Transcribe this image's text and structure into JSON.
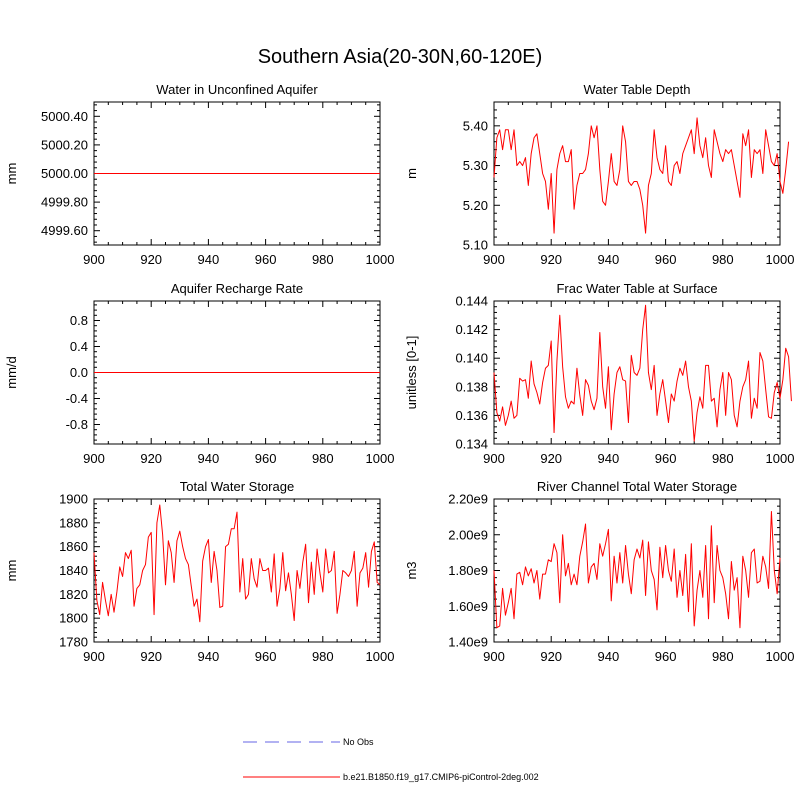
{
  "page": {
    "title": "Southern Asia(20-30N,60-120E)"
  },
  "colors": {
    "series": "#ff0000",
    "obs": "#9999ee",
    "axis": "#000000"
  },
  "legend": {
    "obs_label": "No Obs",
    "model_label": "b.e21.B1850.f19_g17.CMIP6-piControl-2deg.002"
  },
  "chart_data": [
    {
      "type": "line",
      "title": "Water in Unconfined Aquifer",
      "ylabel": "mm",
      "xlabel": "",
      "xlim": [
        900,
        1000
      ],
      "ylim": [
        4999.5,
        5000.5
      ],
      "xticks": [
        900,
        920,
        940,
        960,
        980,
        1000
      ],
      "xtick_labels": [
        "900",
        "920",
        "940",
        "960",
        "980",
        "1000"
      ],
      "yticks": [
        4999.6,
        4999.8,
        5000.0,
        5000.2,
        5000.4
      ],
      "ytick_labels": [
        "4999.60",
        "4999.80",
        "5000.00",
        "5000.20",
        "5000.40"
      ],
      "x_start": 900,
      "series": [
        {
          "name": "b.e21.B1850.f19_g17.CMIP6-piControl-2deg.002",
          "constant": 5000.0
        }
      ]
    },
    {
      "type": "line",
      "title": "Water Table Depth",
      "ylabel": "m",
      "xlabel": "",
      "xlim": [
        900,
        1000
      ],
      "ylim": [
        5.1,
        5.46
      ],
      "xticks": [
        900,
        920,
        940,
        960,
        980,
        1000
      ],
      "xtick_labels": [
        "900",
        "920",
        "940",
        "960",
        "980",
        "1000"
      ],
      "yticks": [
        5.1,
        5.2,
        5.3,
        5.4
      ],
      "ytick_labels": [
        "5.10",
        "5.20",
        "5.30",
        "5.40"
      ],
      "x_start": 900,
      "series": [
        {
          "name": "b.e21.B1850.f19_g17.CMIP6-piControl-2deg.002",
          "values": [
            5.27,
            5.37,
            5.39,
            5.34,
            5.39,
            5.39,
            5.34,
            5.39,
            5.3,
            5.31,
            5.3,
            5.32,
            5.25,
            5.33,
            5.37,
            5.38,
            5.33,
            5.28,
            5.26,
            5.19,
            5.28,
            5.13,
            5.29,
            5.33,
            5.35,
            5.31,
            5.31,
            5.34,
            5.19,
            5.25,
            5.28,
            5.28,
            5.29,
            5.33,
            5.4,
            5.37,
            5.4,
            5.29,
            5.21,
            5.2,
            5.26,
            5.33,
            5.26,
            5.25,
            5.29,
            5.4,
            5.36,
            5.26,
            5.25,
            5.26,
            5.26,
            5.24,
            5.2,
            5.13,
            5.25,
            5.28,
            5.39,
            5.32,
            5.29,
            5.28,
            5.35,
            5.26,
            5.25,
            5.3,
            5.31,
            5.28,
            5.33,
            5.35,
            5.37,
            5.39,
            5.33,
            5.42,
            5.35,
            5.32,
            5.37,
            5.3,
            5.27,
            5.39,
            5.36,
            5.33,
            5.31,
            5.34,
            5.33,
            5.34,
            5.3,
            5.26,
            5.22,
            5.38,
            5.35,
            5.39,
            5.27,
            5.34,
            5.33,
            5.34,
            5.28,
            5.39,
            5.35,
            5.31,
            5.3,
            5.33,
            5.26,
            5.23,
            5.29,
            5.36
          ]
        }
      ]
    },
    {
      "type": "line",
      "title": "Aquifer Recharge Rate",
      "ylabel": "mm/d",
      "xlabel": "",
      "xlim": [
        900,
        1000
      ],
      "ylim": [
        -1.1,
        1.1
      ],
      "xticks": [
        900,
        920,
        940,
        960,
        980,
        1000
      ],
      "xtick_labels": [
        "900",
        "920",
        "940",
        "960",
        "980",
        "1000"
      ],
      "yticks": [
        -0.8,
        -0.4,
        0.0,
        0.4,
        0.8
      ],
      "ytick_labels": [
        "-0.8",
        "-0.4",
        "0.0",
        "0.4",
        "0.8"
      ],
      "x_start": 900,
      "series": [
        {
          "name": "b.e21.B1850.f19_g17.CMIP6-piControl-2deg.002",
          "constant": 0.0
        }
      ]
    },
    {
      "type": "line",
      "title": "Frac Water Table at Surface",
      "ylabel": "unitless [0-1]",
      "xlabel": "",
      "xlim": [
        900,
        1000
      ],
      "ylim": [
        0.134,
        0.144
      ],
      "xticks": [
        900,
        920,
        940,
        960,
        980,
        1000
      ],
      "xtick_labels": [
        "900",
        "920",
        "940",
        "960",
        "980",
        "1000"
      ],
      "yticks": [
        0.134,
        0.136,
        0.138,
        0.14,
        0.142,
        0.144
      ],
      "ytick_labels": [
        "0.134",
        "0.136",
        "0.138",
        "0.140",
        "0.142",
        "0.144"
      ],
      "x_start": 900,
      "series": [
        {
          "name": "b.e21.B1850.f19_g17.CMIP6-piControl-2deg.002",
          "values": [
            0.139,
            0.1362,
            0.1356,
            0.1366,
            0.1353,
            0.136,
            0.137,
            0.1358,
            0.136,
            0.1386,
            0.1384,
            0.1385,
            0.1372,
            0.1398,
            0.1382,
            0.1376,
            0.1368,
            0.1383,
            0.1393,
            0.1395,
            0.1412,
            0.1348,
            0.1398,
            0.143,
            0.1394,
            0.1373,
            0.1365,
            0.137,
            0.1368,
            0.1393,
            0.1374,
            0.136,
            0.1385,
            0.1381,
            0.137,
            0.1364,
            0.1372,
            0.1418,
            0.138,
            0.1365,
            0.1394,
            0.135,
            0.1375,
            0.139,
            0.1394,
            0.1385,
            0.1384,
            0.1355,
            0.1402,
            0.139,
            0.1388,
            0.1393,
            0.142,
            0.1437,
            0.139,
            0.1378,
            0.1395,
            0.136,
            0.1375,
            0.1385,
            0.137,
            0.1355,
            0.1375,
            0.137,
            0.1384,
            0.1393,
            0.1388,
            0.1398,
            0.138,
            0.137,
            0.1342,
            0.1362,
            0.1373,
            0.1365,
            0.1395,
            0.1395,
            0.137,
            0.1372,
            0.1352,
            0.1378,
            0.139,
            0.136,
            0.139,
            0.1385,
            0.136,
            0.1352,
            0.137,
            0.138,
            0.1385,
            0.1398,
            0.1358,
            0.1372,
            0.1365,
            0.1404,
            0.1398,
            0.1378,
            0.1359,
            0.1358,
            0.1376,
            0.1383,
            0.1372,
            0.1385,
            0.1407,
            0.1401,
            0.137
          ]
        }
      ]
    },
    {
      "type": "line",
      "title": "Total Water Storage",
      "ylabel": "mm",
      "xlabel": "",
      "xlim": [
        900,
        1000
      ],
      "ylim": [
        1780,
        1900
      ],
      "xticks": [
        900,
        920,
        940,
        960,
        980,
        1000
      ],
      "xtick_labels": [
        "900",
        "920",
        "940",
        "960",
        "980",
        "1000"
      ],
      "yticks": [
        1780,
        1800,
        1820,
        1840,
        1860,
        1880,
        1900
      ],
      "ytick_labels": [
        "1780",
        "1800",
        "1820",
        "1840",
        "1860",
        "1880",
        "1900"
      ],
      "x_start": 900,
      "series": [
        {
          "name": "b.e21.B1850.f19_g17.CMIP6-piControl-2deg.002",
          "values": [
            1855,
            1815,
            1803,
            1830,
            1815,
            1802,
            1820,
            1805,
            1822,
            1843,
            1835,
            1855,
            1850,
            1857,
            1810,
            1825,
            1828,
            1840,
            1845,
            1868,
            1872,
            1803,
            1880,
            1895,
            1870,
            1828,
            1865,
            1855,
            1830,
            1865,
            1873,
            1860,
            1850,
            1845,
            1827,
            1810,
            1816,
            1797,
            1848,
            1860,
            1866,
            1830,
            1856,
            1840,
            1809,
            1810,
            1860,
            1862,
            1875,
            1875,
            1889,
            1822,
            1850,
            1816,
            1820,
            1850,
            1833,
            1826,
            1850,
            1840,
            1840,
            1842,
            1822,
            1854,
            1810,
            1825,
            1855,
            1823,
            1838,
            1820,
            1798,
            1840,
            1825,
            1847,
            1862,
            1813,
            1847,
            1820,
            1858,
            1838,
            1822,
            1858,
            1838,
            1840,
            1856,
            1804,
            1820,
            1840,
            1838,
            1835,
            1840,
            1856,
            1810,
            1838,
            1842,
            1855,
            1826,
            1856,
            1864,
            1830,
            1828
          ]
        }
      ]
    },
    {
      "type": "line",
      "title": "River Channel Total Water Storage",
      "ylabel": "m3",
      "xlabel": "",
      "xlim": [
        900,
        1000
      ],
      "ylim": [
        1400000000.0,
        2200000000.0
      ],
      "xticks": [
        900,
        920,
        940,
        960,
        980,
        1000
      ],
      "xtick_labels": [
        "900",
        "920",
        "940",
        "960",
        "980",
        "1000"
      ],
      "yticks": [
        1400000000.0,
        1600000000.0,
        1800000000.0,
        2000000000.0,
        2200000000.0
      ],
      "ytick_labels": [
        "1.40e9",
        "1.60e9",
        "1.80e9",
        "2.00e9",
        "2.20e9"
      ],
      "x_start": 900,
      "series": [
        {
          "name": "b.e21.B1850.f19_g17.CMIP6-piControl-2deg.002",
          "values": [
            1800000000.0,
            1480000000.0,
            1490000000.0,
            1700000000.0,
            1550000000.0,
            1620000000.0,
            1700000000.0,
            1530000000.0,
            1780000000.0,
            1790000000.0,
            1720000000.0,
            1820000000.0,
            1770000000.0,
            1810000000.0,
            1730000000.0,
            1800000000.0,
            1640000000.0,
            1780000000.0,
            1780000000.0,
            1860000000.0,
            1850000000.0,
            1950000000.0,
            1900000000.0,
            1620000000.0,
            2000000000.0,
            1770000000.0,
            1840000000.0,
            1720000000.0,
            1780000000.0,
            1720000000.0,
            1880000000.0,
            1960000000.0,
            2060000000.0,
            1730000000.0,
            1820000000.0,
            1840000000.0,
            1750000000.0,
            1950000000.0,
            1880000000.0,
            1950000000.0,
            2030000000.0,
            1630000000.0,
            1880000000.0,
            1730000000.0,
            1900000000.0,
            1730000000.0,
            1940000000.0,
            1780000000.0,
            1670000000.0,
            1860000000.0,
            1920000000.0,
            1870000000.0,
            1970000000.0,
            1660000000.0,
            1960000000.0,
            1800000000.0,
            1750000000.0,
            1580000000.0,
            1930000000.0,
            1760000000.0,
            1940000000.0,
            1800000000.0,
            1740000000.0,
            1920000000.0,
            1650000000.0,
            1800000000.0,
            1660000000.0,
            1890000000.0,
            1570000000.0,
            1950000000.0,
            1490000000.0,
            1690000000.0,
            1800000000.0,
            1650000000.0,
            1940000000.0,
            1530000000.0,
            2050000000.0,
            1620000000.0,
            1940000000.0,
            1800000000.0,
            1760000000.0,
            1670000000.0,
            1530000000.0,
            1850000000.0,
            1690000000.0,
            1760000000.0,
            1480000000.0,
            1880000000.0,
            1800000000.0,
            1650000000.0,
            1900000000.0,
            1920000000.0,
            1730000000.0,
            1740000000.0,
            1880000000.0,
            1820000000.0,
            1700000000.0,
            2130000000.0,
            1800000000.0,
            1670000000.0,
            1870000000.0
          ]
        }
      ]
    }
  ]
}
